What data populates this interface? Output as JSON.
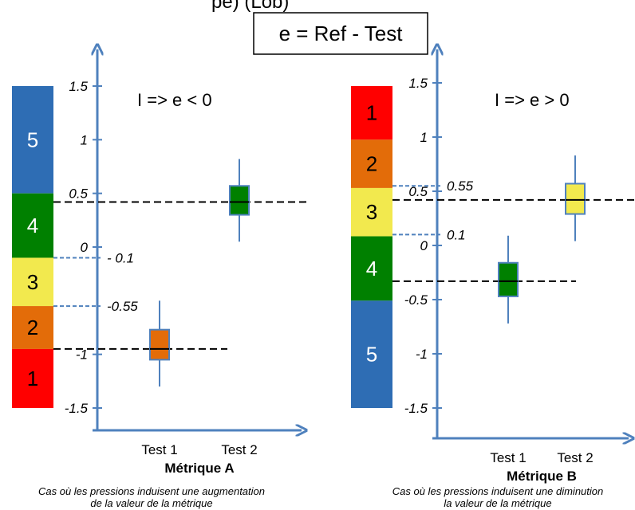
{
  "header": {
    "top_fragment": "pe)                                   (Lob)",
    "formula": "e = Ref - Test"
  },
  "colors": {
    "axis": "#4f81bd",
    "box_stroke": "#4f81bd",
    "red": "#ff0000",
    "orange": "#e36c09",
    "yellow": "#f2e94e",
    "green": "#008000",
    "blue": "#2e6db4"
  },
  "panels": [
    {
      "id": "a",
      "rule": "I =>  e < 0",
      "axis_min": -1.5,
      "axis_max": 1.5,
      "ticks": [
        "1.5",
        "1",
        "0.5",
        "0",
        "-1",
        "-1.5"
      ],
      "tick_values": [
        1.5,
        1,
        0.5,
        0,
        -1,
        -1.5
      ],
      "thresholds": [
        {
          "value": -0.1,
          "label": "- 0.1"
        },
        {
          "value": -0.55,
          "label": "-0.55"
        }
      ],
      "classes": [
        {
          "label": "5",
          "from": 1.5,
          "to": 0.5,
          "color": "#2e6db4",
          "text_color": "#ffffff"
        },
        {
          "label": "4",
          "from": 0.5,
          "to": -0.1,
          "color": "#008000",
          "text_color": "#ffffff"
        },
        {
          "label": "3",
          "from": -0.1,
          "to": -0.55,
          "color": "#f2e94e",
          "text_color": "#000000"
        },
        {
          "label": "2",
          "from": -0.55,
          "to": -0.95,
          "color": "#e36c09",
          "text_color": "#000000"
        },
        {
          "label": "1",
          "from": -0.95,
          "to": -1.5,
          "color": "#ff0000",
          "text_color": "#000000"
        }
      ],
      "categories": [
        "Test 1",
        "Test 2"
      ],
      "boxes": [
        {
          "name": "Test 1",
          "whisker_low": -1.3,
          "q1": -1.05,
          "median": -0.95,
          "q3": -0.77,
          "whisker_high": -0.5,
          "color": "#e36c09"
        },
        {
          "name": "Test 2",
          "whisker_low": 0.05,
          "q1": 0.3,
          "median": 0.42,
          "q3": 0.57,
          "whisker_high": 0.82,
          "color": "#008000"
        }
      ],
      "title": "Métrique A",
      "caption_line1": "Cas où les pressions induisent une augmentation",
      "caption_line2": "de la valeur de la métrique"
    },
    {
      "id": "b",
      "rule": "I =>  e > 0",
      "axis_min": -1.5,
      "axis_max": 1.5,
      "ticks": [
        "1.5",
        "1",
        "0.5",
        "0",
        "-0.5",
        "-1",
        "-1.5"
      ],
      "tick_values": [
        1.5,
        1,
        0.5,
        0,
        -0.5,
        -1,
        -1.5
      ],
      "thresholds": [
        {
          "value": 0.55,
          "label": "0.55"
        },
        {
          "value": 0.1,
          "label": "0.1"
        }
      ],
      "classes": [
        {
          "label": "1",
          "from": 1.5,
          "to": 1.0,
          "color": "#ff0000",
          "text_color": "#000000"
        },
        {
          "label": "2",
          "from": 1.0,
          "to": 0.55,
          "color": "#e36c09",
          "text_color": "#000000"
        },
        {
          "label": "3",
          "from": 0.55,
          "to": 0.1,
          "color": "#f2e94e",
          "text_color": "#000000"
        },
        {
          "label": "4",
          "from": 0.1,
          "to": -0.5,
          "color": "#008000",
          "text_color": "#ffffff"
        },
        {
          "label": "5",
          "from": -0.5,
          "to": -1.5,
          "color": "#2e6db4",
          "text_color": "#ffffff"
        }
      ],
      "categories": [
        "Test 1",
        "Test 2"
      ],
      "boxes": [
        {
          "name": "Test 1",
          "whisker_low": -0.72,
          "q1": -0.47,
          "median": -0.33,
          "q3": -0.16,
          "whisker_high": 0.09,
          "color": "#008000"
        },
        {
          "name": "Test 2",
          "whisker_low": 0.04,
          "q1": 0.29,
          "median": 0.42,
          "q3": 0.57,
          "whisker_high": 0.83,
          "color": "#f2e94e"
        }
      ],
      "title": "Métrique B",
      "caption_line1": "Cas où les pressions induisent une diminution",
      "caption_line2": "la valeur de la métrique"
    }
  ]
}
